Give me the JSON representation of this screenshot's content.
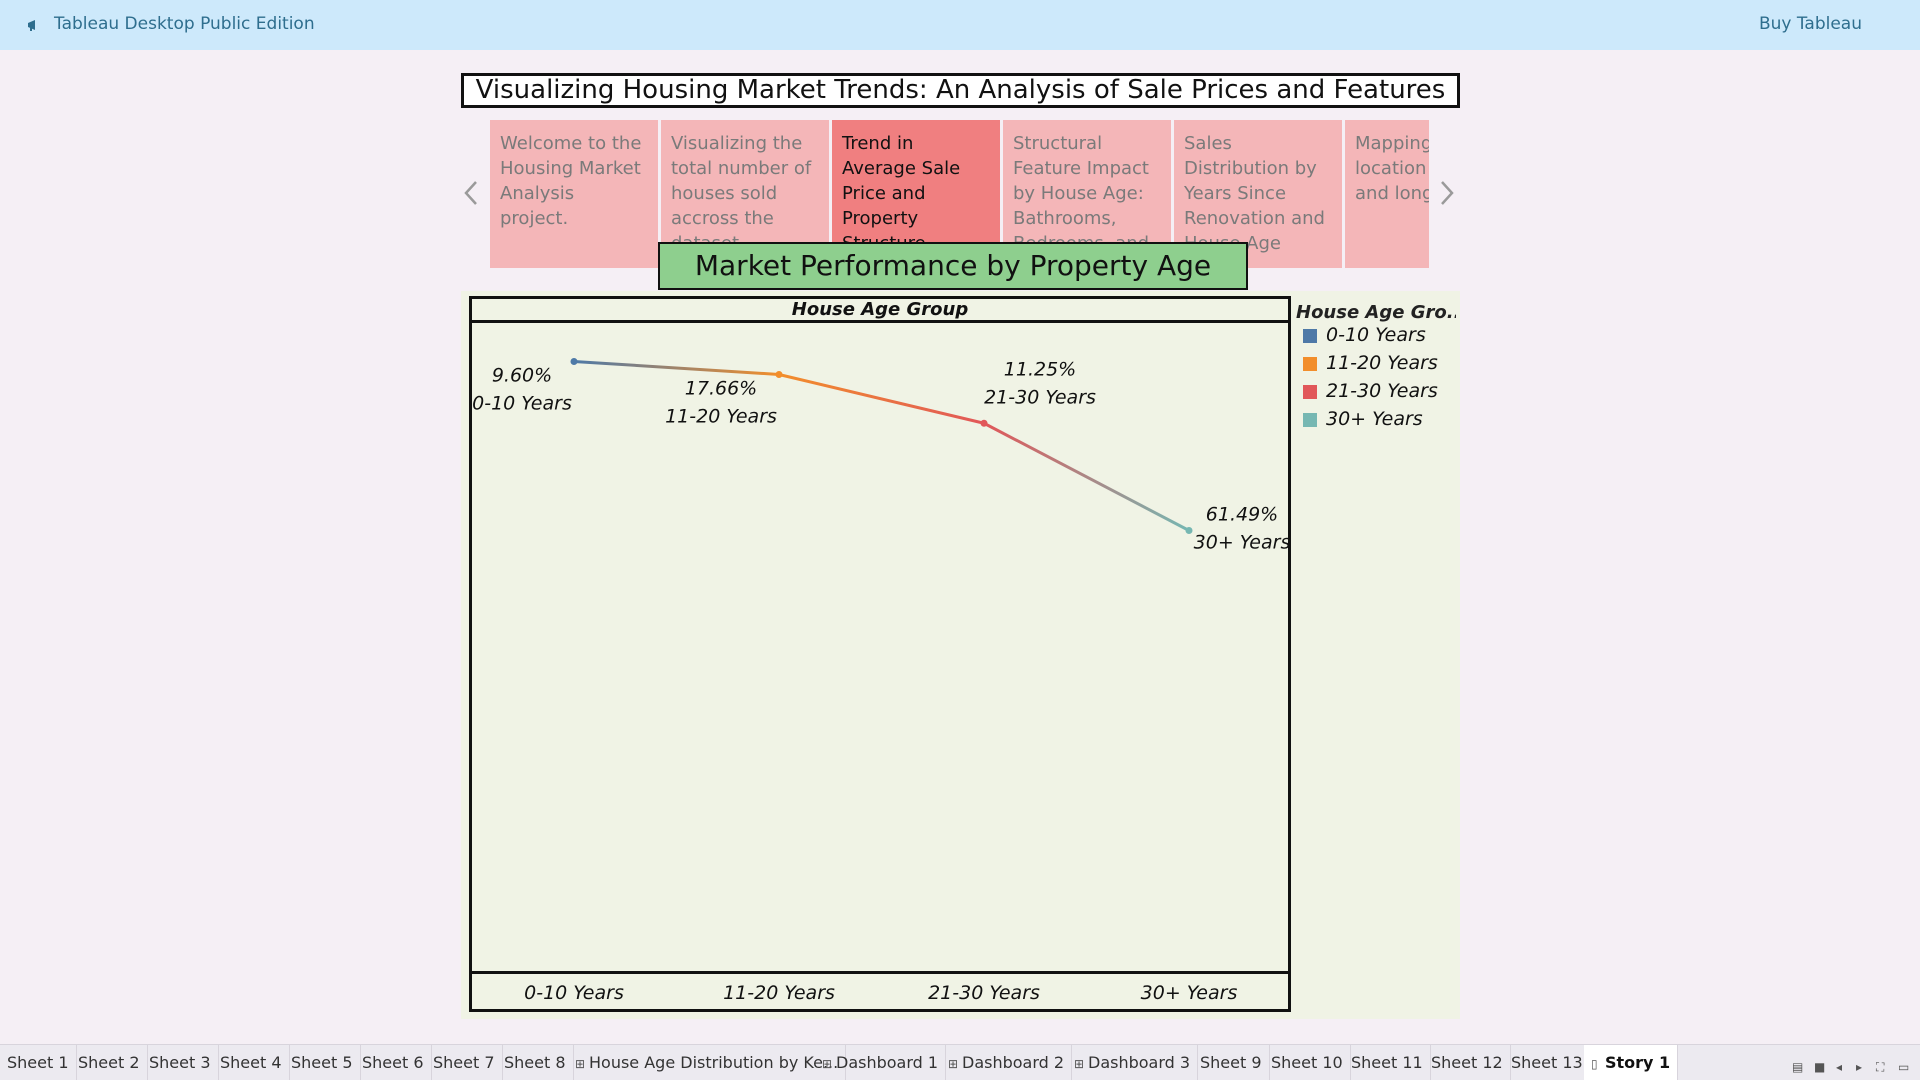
{
  "app": {
    "title": "Tableau Desktop Public Edition",
    "buy_label": "Buy Tableau",
    "icon": "megaphone-icon"
  },
  "story": {
    "title": "Visualizing Housing Market Trends: An Analysis of Sale Prices and Features",
    "points": [
      "Welcome to the Housing Market Analysis project.",
      "Visualizing the total number of houses sold accross the dataset",
      "Trend in Average Sale Price and Property Structure",
      "Structural Feature Impact by House Age: Bathrooms, Bedrooms, and",
      "Sales Distribution by Years Since Renovation and House Age",
      "Mapping by location latitude and longitude"
    ],
    "active_point": 2
  },
  "sheet": {
    "title": "Market Performance by Property Age",
    "header": "House Age Group"
  },
  "legend": {
    "title": "House Age Gro..",
    "items": [
      {
        "label": "0-10 Years",
        "color": "#4e79a7"
      },
      {
        "label": "11-20 Years",
        "color": "#f28e2b"
      },
      {
        "label": "21-30 Years",
        "color": "#e15759"
      },
      {
        "label": "30+ Years",
        "color": "#76b7b2"
      }
    ]
  },
  "chart_data": {
    "type": "line",
    "categories": [
      "0-10 Years",
      "11-20 Years",
      "21-30 Years",
      "30+ Years"
    ],
    "percent_labels": [
      "9.60%",
      "17.66%",
      "11.25%",
      "61.49%"
    ],
    "colors": [
      "#4e79a7",
      "#f28e2b",
      "#e15759",
      "#76b7b2"
    ],
    "relative_values": [
      0.95,
      0.93,
      0.855,
      0.69
    ],
    "xlabel": "House Age Group"
  },
  "tabs": [
    {
      "label": "Sheet 1",
      "icon": ""
    },
    {
      "label": "Sheet 2",
      "icon": ""
    },
    {
      "label": "Sheet 3",
      "icon": ""
    },
    {
      "label": "Sheet 4",
      "icon": ""
    },
    {
      "label": "Sheet 5",
      "icon": ""
    },
    {
      "label": "Sheet 6",
      "icon": ""
    },
    {
      "label": "Sheet 7",
      "icon": ""
    },
    {
      "label": "Sheet 8",
      "icon": ""
    },
    {
      "label": "House Age Distribution by Ke...",
      "icon": "dashboard-icon"
    },
    {
      "label": "Dashboard 1",
      "icon": "dashboard-icon"
    },
    {
      "label": "Dashboard 2",
      "icon": "dashboard-icon"
    },
    {
      "label": "Dashboard 3",
      "icon": "dashboard-icon"
    },
    {
      "label": "Sheet 9",
      "icon": ""
    },
    {
      "label": "Sheet 10",
      "icon": ""
    },
    {
      "label": "Sheet 11",
      "icon": ""
    },
    {
      "label": "Sheet 12",
      "icon": ""
    },
    {
      "label": "Sheet 13",
      "icon": ""
    },
    {
      "label": "Story 1",
      "icon": "story-icon",
      "active": true
    }
  ]
}
